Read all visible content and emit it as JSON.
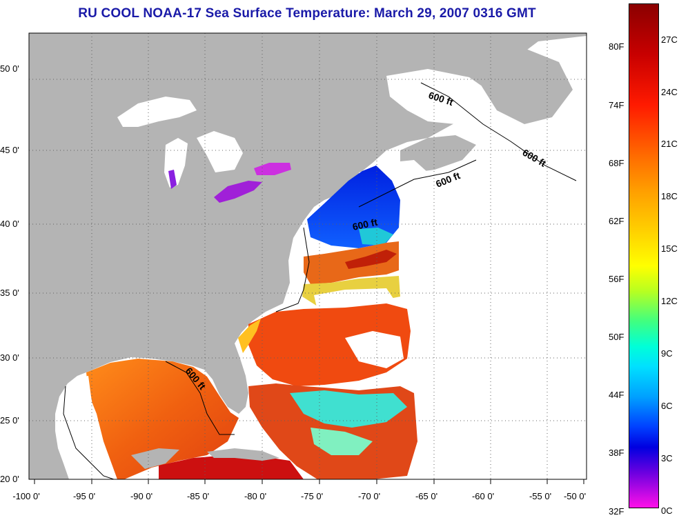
{
  "title": "RU COOL  NOAA-17  Sea Surface Temperature:  March 29, 2007 0316 GMT",
  "map": {
    "lon_labels": [
      "-100 0'",
      "-95 0'",
      "-90 0'",
      "-85 0'",
      "-80 0'",
      "-75 0'",
      "-70 0'",
      "-65 0'",
      "-60 0'",
      "-55 0'",
      "-50 0'"
    ],
    "lat_labels": [
      "50 0'",
      "45 0'",
      "40 0'",
      "35 0'",
      "30 0'",
      "25 0'",
      "20 0'"
    ],
    "contour_labels": [
      "600 ft",
      "600 ft",
      "600 ft",
      "600 ft",
      "600 ft"
    ],
    "colors": {
      "land": "#b4b4b4",
      "water_nodata": "#ffffff",
      "gulf_warm": "#f06a10",
      "gulf_hot": "#c80c0c",
      "shelf_cold": "#1030ff"
    }
  },
  "colorbar": {
    "fahrenheit_labels": [
      "80F",
      "74F",
      "68F",
      "62F",
      "56F",
      "50F",
      "44F",
      "38F",
      "32F"
    ],
    "celsius_labels": [
      "27C",
      "24C",
      "21C",
      "18C",
      "15C",
      "12C",
      "9C",
      "6C",
      "3C",
      "0C"
    ],
    "range_celsius": [
      0,
      29
    ],
    "top_color": "#8b0000",
    "bottom_color": "#ff10e8"
  }
}
